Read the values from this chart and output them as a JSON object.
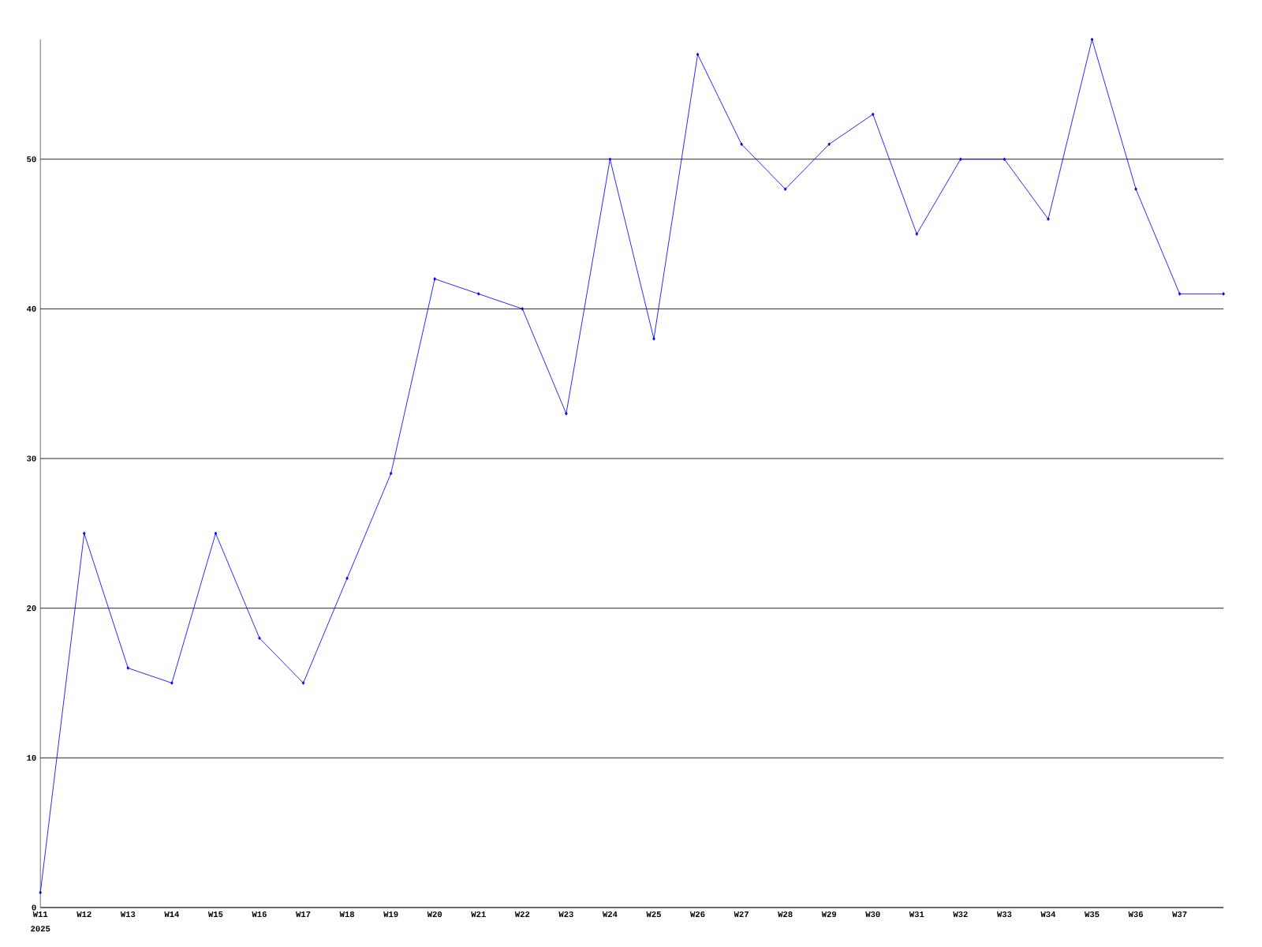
{
  "chart_data": {
    "type": "line",
    "categories": [
      "W11",
      "W12",
      "W13",
      "W14",
      "W15",
      "W16",
      "W17",
      "W18",
      "W19",
      "W20",
      "W21",
      "W22",
      "W23",
      "W24",
      "W25",
      "W26",
      "W27",
      "W28",
      "W29",
      "W30",
      "W31",
      "W32",
      "W33",
      "W34",
      "W35",
      "W36",
      "W37",
      null
    ],
    "values": [
      1,
      25,
      16,
      15,
      25,
      18,
      15,
      22,
      29,
      42,
      41,
      40,
      33,
      50,
      38,
      57,
      51,
      48,
      51,
      53,
      45,
      50,
      50,
      46,
      58,
      48,
      41,
      41
    ],
    "color": "#0000ff",
    "ylim": [
      0,
      58
    ],
    "yticks": [
      0,
      10,
      20,
      30,
      40,
      50
    ],
    "grid": "y",
    "marker": "diamond",
    "line_style": "solid",
    "annotations": [
      "2025"
    ]
  }
}
